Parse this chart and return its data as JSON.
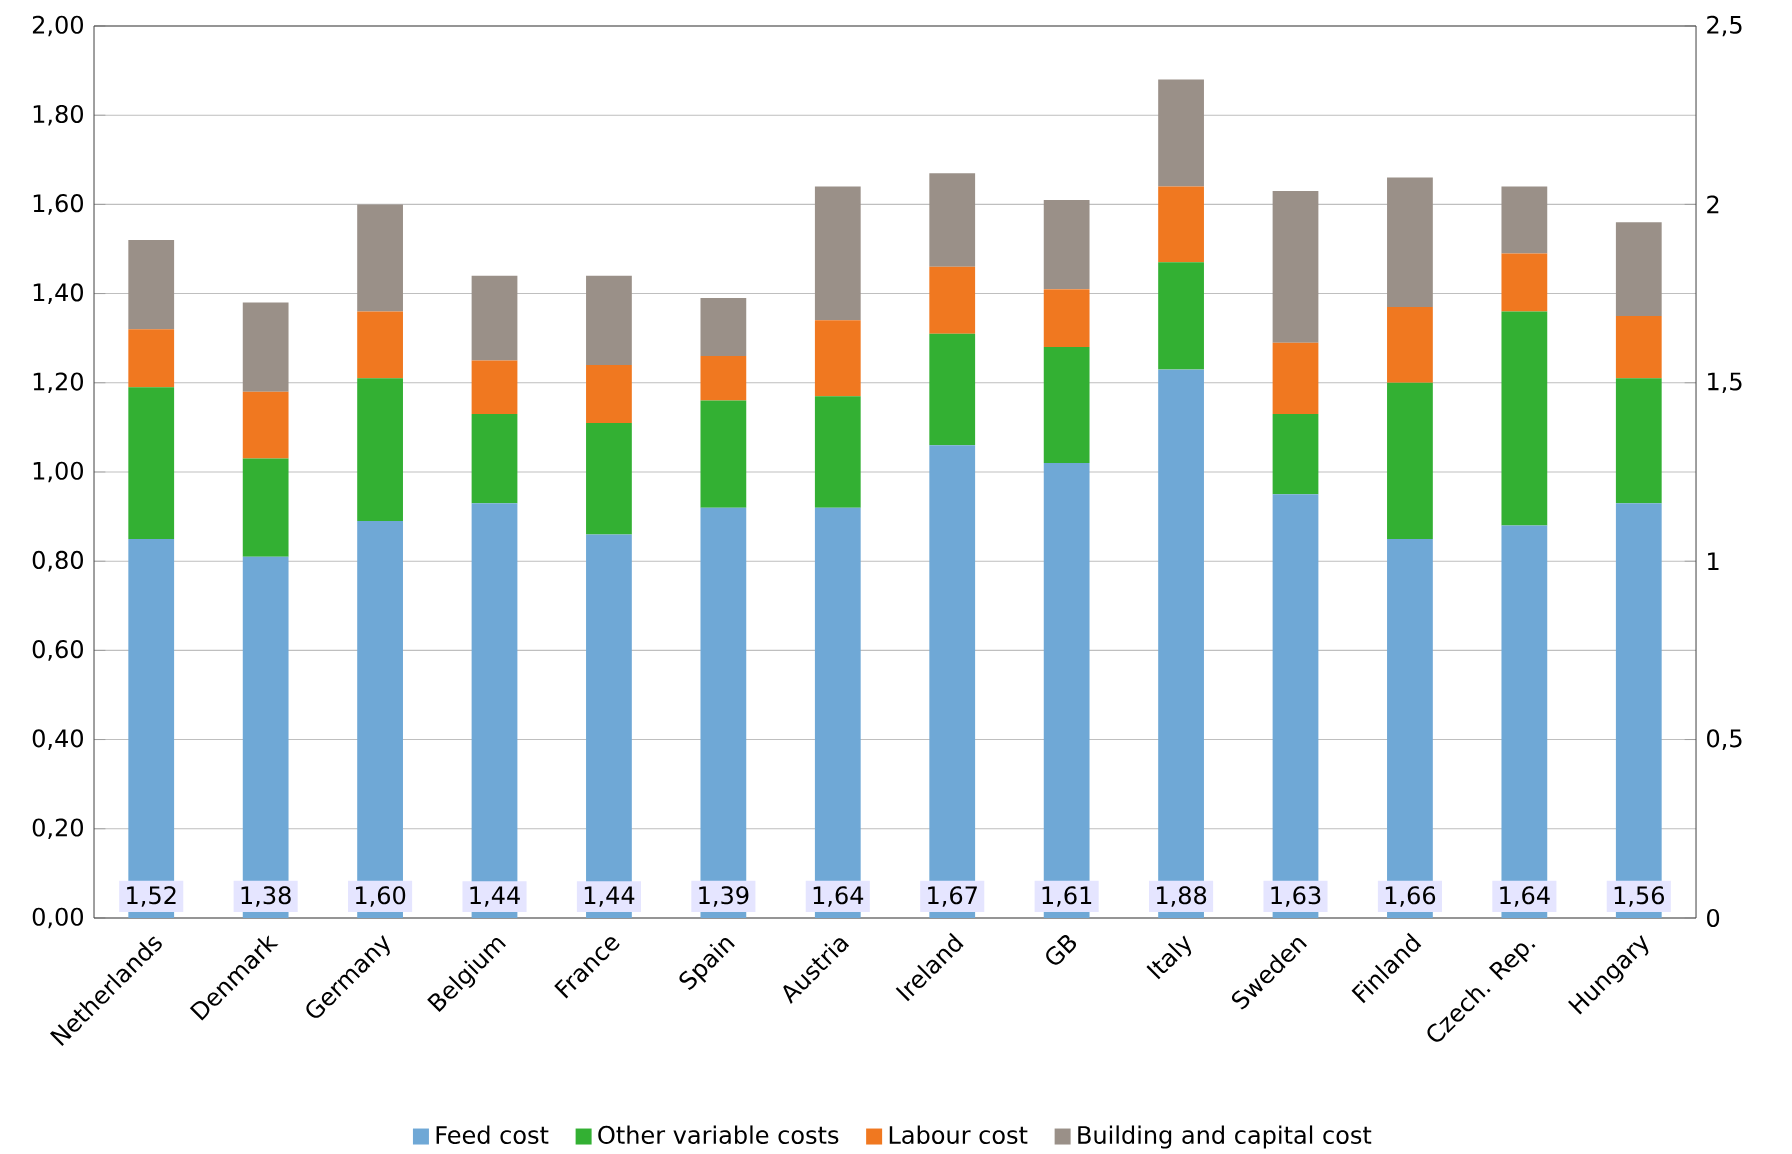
{
  "chart_data": {
    "type": "bar",
    "stacked": true,
    "categories": [
      "Netherlands",
      "Denmark",
      "Germany",
      "Belgium",
      "France",
      "Spain",
      "Austria",
      "Ireland",
      "GB",
      "Italy",
      "Sweden",
      "Finland",
      "Czech. Rep.",
      "Hungary"
    ],
    "series": [
      {
        "name": "Feed cost",
        "color": "#6fa8d6",
        "values": [
          0.85,
          0.81,
          0.89,
          0.93,
          0.86,
          0.92,
          0.92,
          1.06,
          1.02,
          1.23,
          0.95,
          0.85,
          0.88,
          0.93
        ]
      },
      {
        "name": "Other variable costs",
        "color": "#33b033",
        "values": [
          0.34,
          0.22,
          0.32,
          0.2,
          0.25,
          0.24,
          0.25,
          0.25,
          0.26,
          0.24,
          0.18,
          0.35,
          0.48,
          0.28
        ]
      },
      {
        "name": "Labour cost",
        "color": "#f07820",
        "values": [
          0.13,
          0.15,
          0.15,
          0.12,
          0.13,
          0.1,
          0.17,
          0.15,
          0.13,
          0.17,
          0.16,
          0.17,
          0.13,
          0.14
        ]
      },
      {
        "name": "Building and capital cost",
        "color": "#9a9088",
        "values": [
          0.2,
          0.2,
          0.24,
          0.19,
          0.2,
          0.13,
          0.3,
          0.21,
          0.2,
          0.24,
          0.34,
          0.29,
          0.15,
          0.21
        ]
      }
    ],
    "totals": [
      "1,52",
      "1,38",
      "1,60",
      "1,44",
      "1,44",
      "1,39",
      "1,64",
      "1,67",
      "1,61",
      "1,88",
      "1,63",
      "1,66",
      "1,64",
      "1,56"
    ],
    "ylim": [
      0,
      2
    ],
    "yticks": [
      {
        "value": 0,
        "label": "0,00"
      },
      {
        "value": 0.2,
        "label": "0,20"
      },
      {
        "value": 0.4,
        "label": "0,40"
      },
      {
        "value": 0.6,
        "label": "0,60"
      },
      {
        "value": 0.8,
        "label": "0,80"
      },
      {
        "value": 1.0,
        "label": "1,00"
      },
      {
        "value": 1.2,
        "label": "1,20"
      },
      {
        "value": 1.4,
        "label": "1,40"
      },
      {
        "value": 1.6,
        "label": "1,60"
      },
      {
        "value": 1.8,
        "label": "1,80"
      },
      {
        "value": 2.0,
        "label": "2,00"
      }
    ],
    "y2lim": [
      0,
      2.5
    ],
    "y2ticks": [
      0,
      {
        "value": 0.5,
        "label": "0,5"
      },
      1,
      {
        "value": 1.5,
        "label": "1,5"
      },
      2,
      {
        "value": 2.5,
        "label": "2,5"
      }
    ],
    "grid": "y",
    "legend": "bottom"
  }
}
